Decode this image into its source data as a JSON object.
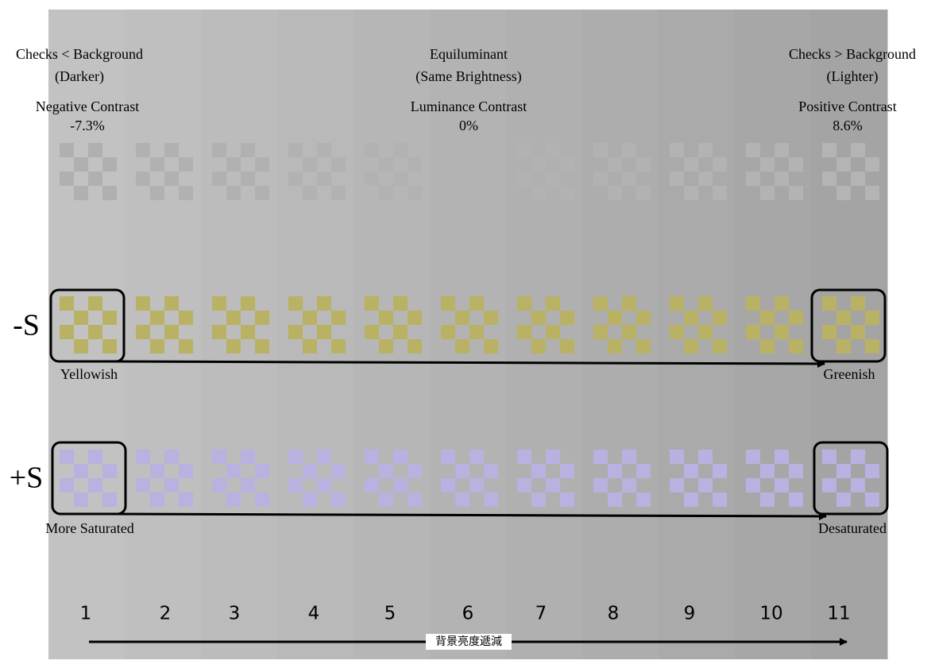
{
  "header": {
    "left": {
      "title": "Checks < Background",
      "subtitle": "(Darker)",
      "contrast_label": "Negative Contrast",
      "contrast_value": "-7.3%"
    },
    "center": {
      "title": "Equiluminant",
      "subtitle": "(Same Brightness)",
      "contrast_label": "Luminance Contrast",
      "contrast_value": "0%"
    },
    "right": {
      "title": "Checks > Background",
      "subtitle": "(Lighter)",
      "contrast_label": "Positive Contrast",
      "contrast_value": "8.6%"
    }
  },
  "rows": [
    {
      "label": "-S",
      "start": "Yellowish",
      "end": "Greenish"
    },
    {
      "label": "+S",
      "start": "More Saturated",
      "end": "Desaturated"
    }
  ],
  "columns": [
    1,
    2,
    3,
    4,
    5,
    6,
    7,
    8,
    9,
    10,
    11
  ],
  "axis_label": "背景亮度遞減"
}
